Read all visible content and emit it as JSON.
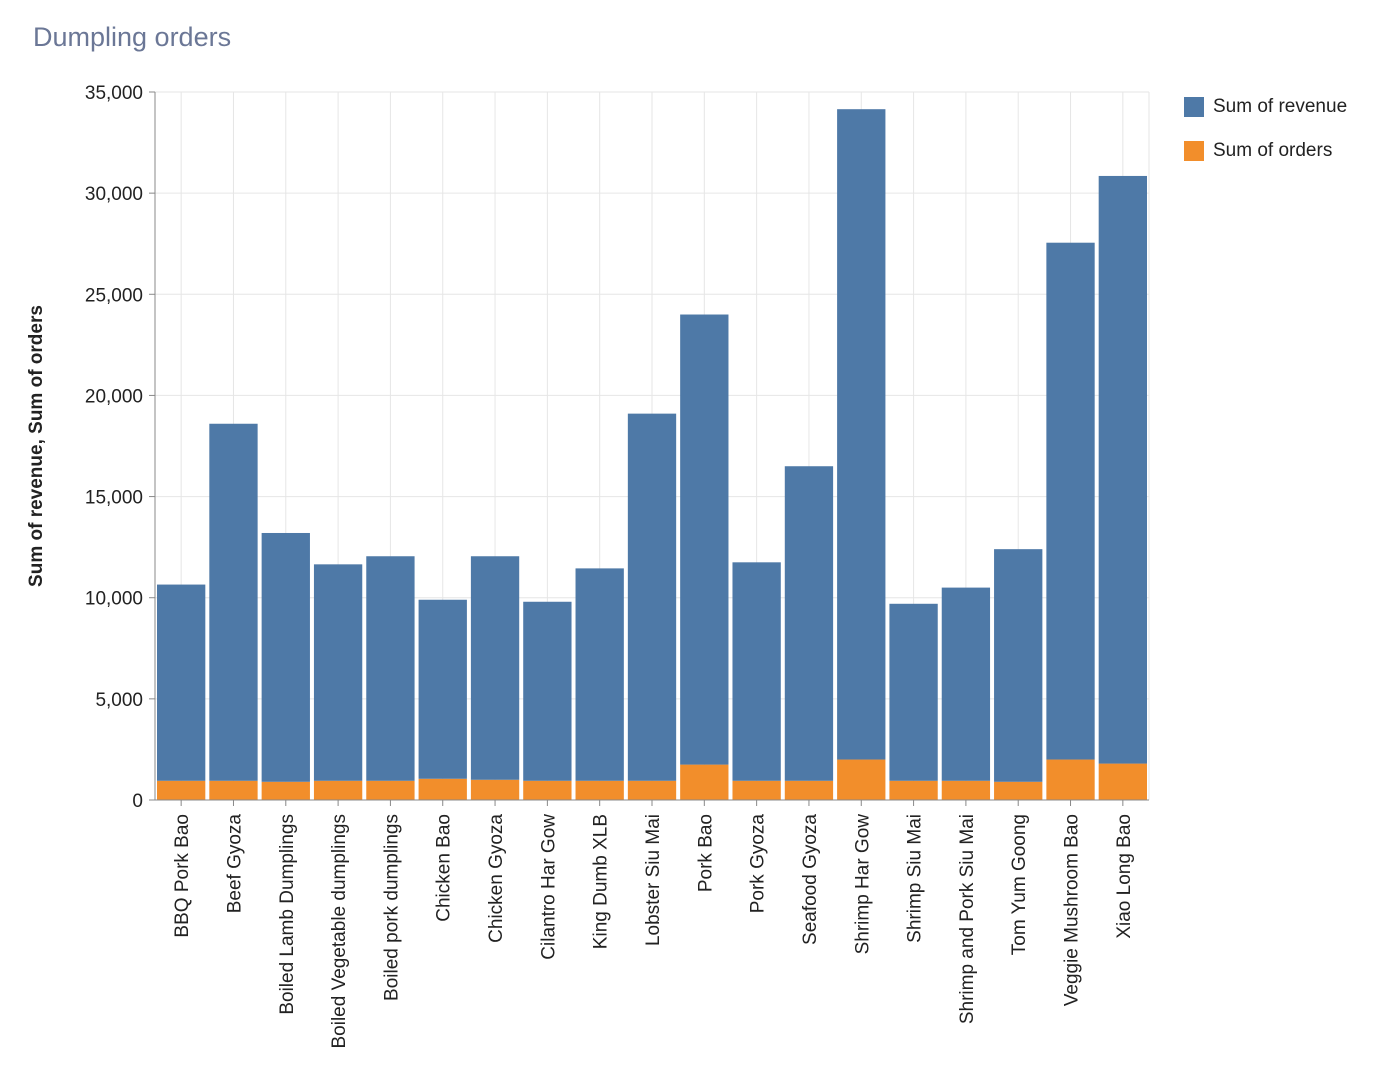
{
  "title": "Dumpling orders",
  "colors": {
    "revenue": "#4e79a7",
    "orders": "#f28e2b",
    "grid": "#e6e6e6",
    "axis": "#888888"
  },
  "legend": [
    {
      "label": "Sum of revenue",
      "color": "#4e79a7"
    },
    {
      "label": "Sum of orders",
      "color": "#f28e2b"
    }
  ],
  "chart_data": {
    "type": "bar",
    "stacked": true,
    "title": "Dumpling orders",
    "xlabel": "",
    "ylabel": "Sum of revenue, Sum of orders",
    "ylim": [
      0,
      35000
    ],
    "yticks": [
      0,
      5000,
      10000,
      15000,
      20000,
      25000,
      30000,
      35000
    ],
    "ytick_labels": [
      "0",
      "5,000",
      "10,000",
      "15,000",
      "20,000",
      "25,000",
      "30,000",
      "35,000"
    ],
    "grid": true,
    "legend_position": "top-right",
    "categories": [
      "BBQ Pork Bao",
      "Beef Gyoza",
      "Boiled Lamb Dumplings",
      "Boiled Vegetable dumplings",
      "Boiled pork dumplings",
      "Chicken Bao",
      "Chicken Gyoza",
      "Cilantro Har Gow",
      "King Dumb XLB",
      "Lobster Siu Mai",
      "Pork Bao",
      "Pork Gyoza",
      "Seafood Gyoza",
      "Shrimp Har Gow",
      "Shrimp Siu Mai",
      "Shrimp and Pork Siu Mai",
      "Tom Yum Goong",
      "Veggie Mushroom Bao",
      "Xiao Long Bao"
    ],
    "series": [
      {
        "name": "Sum of orders",
        "values": [
          950,
          950,
          900,
          950,
          950,
          1050,
          1000,
          950,
          950,
          950,
          1750,
          950,
          950,
          2000,
          950,
          950,
          900,
          2000,
          1800
        ]
      },
      {
        "name": "Sum of revenue",
        "values": [
          9700,
          17650,
          12300,
          10700,
          11100,
          8850,
          11050,
          8850,
          10500,
          18150,
          22250,
          10800,
          15550,
          32150,
          8750,
          9550,
          11500,
          25550,
          29050
        ]
      }
    ]
  }
}
